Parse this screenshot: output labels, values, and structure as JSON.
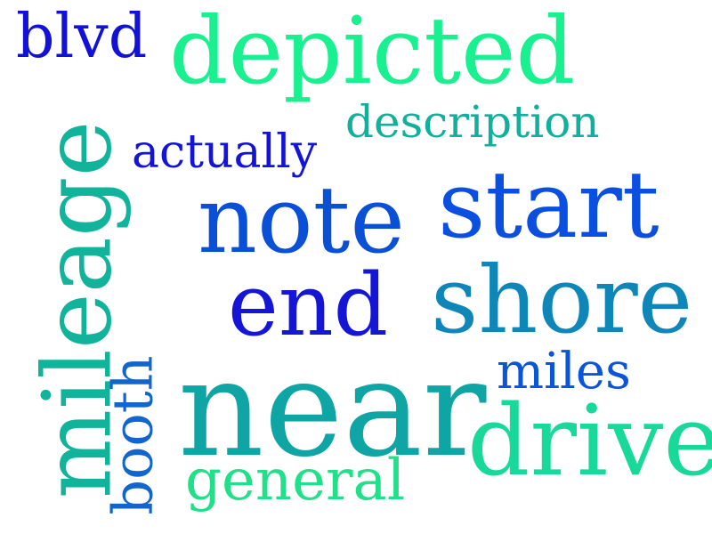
{
  "words": [
    {
      "text": "depicted",
      "color": "#19f08f"
    },
    {
      "text": "blvd",
      "color": "#1212d6"
    },
    {
      "text": "description",
      "color": "#10b09c"
    },
    {
      "text": "actually",
      "color": "#1414d8"
    },
    {
      "text": "note",
      "color": "#0a50d6"
    },
    {
      "text": "start",
      "color": "#0a4fe0"
    },
    {
      "text": "end",
      "color": "#1515d6"
    },
    {
      "text": "shore",
      "color": "#0f86b8"
    },
    {
      "text": "mileage",
      "color": "#11b39a"
    },
    {
      "text": "booth",
      "color": "#1265cc"
    },
    {
      "text": "near",
      "color": "#0fa5a5"
    },
    {
      "text": "miles",
      "color": "#0a55d8"
    },
    {
      "text": "drive",
      "color": "#19d99a"
    },
    {
      "text": "general",
      "color": "#22e08a"
    }
  ]
}
